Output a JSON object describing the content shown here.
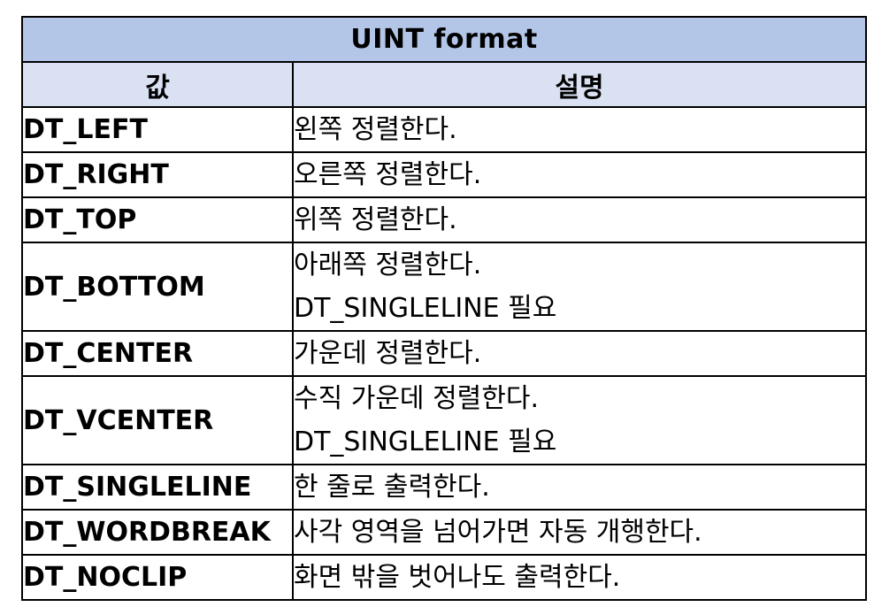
{
  "table": {
    "title": "UINT format",
    "headers": [
      "값",
      "설명"
    ],
    "rows": [
      {
        "value": "DT_LEFT",
        "description": [
          "왼쪽 정렬한다."
        ]
      },
      {
        "value": "DT_RIGHT",
        "description": [
          "오른쪽 정렬한다."
        ]
      },
      {
        "value": "DT_TOP",
        "description": [
          "위쪽 정렬한다."
        ]
      },
      {
        "value": "DT_BOTTOM",
        "description": [
          "아래쪽 정렬한다.",
          "DT_SINGLELINE 필요"
        ]
      },
      {
        "value": "DT_CENTER",
        "description": [
          "가운데 정렬한다."
        ]
      },
      {
        "value": "DT_VCENTER",
        "description": [
          "수직 가운데 정렬한다.",
          "DT_SINGLELINE 필요"
        ]
      },
      {
        "value": "DT_SINGLELINE",
        "description": [
          "한 줄로 출력한다."
        ]
      },
      {
        "value": "DT_WORDBREAK",
        "description": [
          "사각 영역을 넘어가면 자동 개행한다."
        ]
      },
      {
        "value": "DT_NOCLIP",
        "description": [
          "화면 밖을 벗어나도 출력한다."
        ]
      }
    ],
    "colors": {
      "title_bg": "#b4c6e7",
      "header_bg": "#d9e1f2",
      "border": "#000000"
    }
  }
}
